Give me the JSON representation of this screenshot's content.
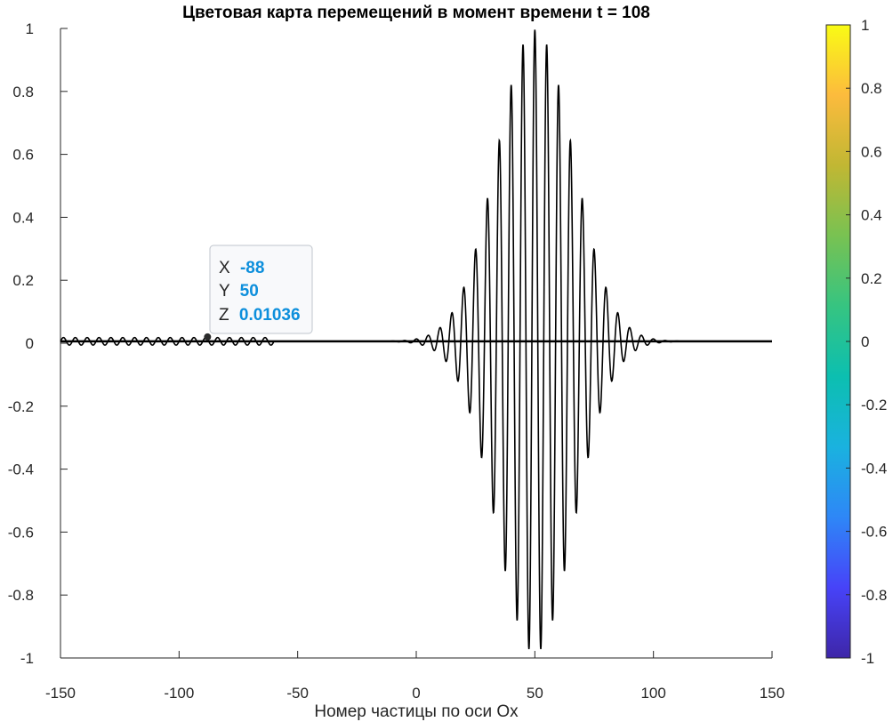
{
  "chart_data": {
    "type": "line",
    "title": "Цветовая карта перемещений в момент времени t = 108",
    "xlabel": "Номер частицы по оси Ox",
    "ylabel": "",
    "xlim": [
      -150,
      150
    ],
    "ylim": [
      -1,
      1
    ],
    "x_ticks": [
      "-150",
      "-100",
      "-50",
      "0",
      "50",
      "100",
      "150"
    ],
    "y_ticks": [
      "1",
      "0.8",
      "0.6",
      "0.4",
      "0.2",
      "0",
      "-0.2",
      "-0.4",
      "-0.6",
      "-0.8",
      "-1"
    ],
    "line_color": "#000000",
    "grid": false,
    "wave_packet": {
      "center": 50,
      "peak_amplitude": 0.99,
      "min_value": -0.92,
      "period": 5,
      "envelope_width": 16
    },
    "left_ripple": {
      "from": -150,
      "to": -60,
      "amplitude": 0.012,
      "period": 5,
      "baseline": 0.008
    },
    "colorbar": {
      "limits": [
        -1,
        1
      ],
      "ticks": [
        "1",
        "0.8",
        "0.6",
        "0.4",
        "0.2",
        "0",
        "-0.2",
        "-0.4",
        "-0.6",
        "-0.8",
        "-1"
      ],
      "colormap": [
        "#3e26a8",
        "#4743f8",
        "#2e87f7",
        "#1ab2df",
        "#0cbfb0",
        "#36c481",
        "#78c252",
        "#c1b733",
        "#fcbb3d",
        "#f9fb15"
      ]
    },
    "datatip": {
      "point": {
        "x": -88,
        "y": 0.02
      },
      "x_key": "X",
      "x_value": "-88",
      "y_key": "Y",
      "y_value": "50",
      "z_key": "Z",
      "z_value": "0.01036"
    }
  }
}
